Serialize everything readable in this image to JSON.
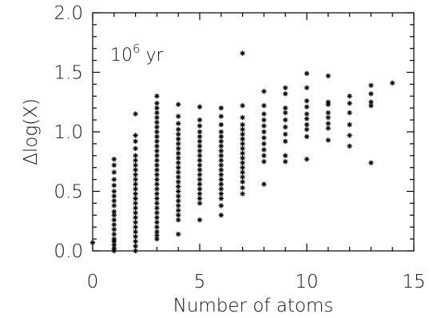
{
  "chart_data": {
    "type": "scatter",
    "title": "",
    "xlabel": "Number of atoms",
    "ylabel": "Δlog(X)",
    "xlim": [
      0,
      15
    ],
    "ylim": [
      0,
      2
    ],
    "xticks": [
      0,
      5,
      10,
      15
    ],
    "yticks": [
      0.0,
      0.5,
      1.0,
      1.5,
      2.0
    ],
    "xtick_labels": [
      "0",
      "5",
      "10",
      "15"
    ],
    "ytick_labels": [
      "0.0",
      "0.5",
      "1.0",
      "1.5",
      "2.0"
    ],
    "annotation": {
      "base": "10",
      "exponent": "6",
      "unit": " yr"
    },
    "marker": "asterisk",
    "marker_color": "#000000",
    "grid": false,
    "points": [
      [
        0,
        0.07
      ],
      [
        1,
        0.0
      ],
      [
        1,
        0.02
      ],
      [
        1,
        0.05
      ],
      [
        1,
        0.08
      ],
      [
        1,
        0.1
      ],
      [
        1,
        0.14
      ],
      [
        1,
        0.18
      ],
      [
        1,
        0.22
      ],
      [
        1,
        0.26
      ],
      [
        1,
        0.3
      ],
      [
        1,
        0.33
      ],
      [
        1,
        0.38
      ],
      [
        1,
        0.42
      ],
      [
        1,
        0.46
      ],
      [
        1,
        0.5
      ],
      [
        1,
        0.55
      ],
      [
        1,
        0.6
      ],
      [
        1,
        0.66
      ],
      [
        1,
        0.72
      ],
      [
        1,
        0.77
      ],
      [
        2,
        0.0
      ],
      [
        2,
        0.04
      ],
      [
        2,
        0.08
      ],
      [
        2,
        0.12
      ],
      [
        2,
        0.16
      ],
      [
        2,
        0.2
      ],
      [
        2,
        0.24
      ],
      [
        2,
        0.28
      ],
      [
        2,
        0.32
      ],
      [
        2,
        0.36
      ],
      [
        2,
        0.4
      ],
      [
        2,
        0.44
      ],
      [
        2,
        0.48
      ],
      [
        2,
        0.52
      ],
      [
        2,
        0.56
      ],
      [
        2,
        0.6
      ],
      [
        2,
        0.64
      ],
      [
        2,
        0.68
      ],
      [
        2,
        0.72
      ],
      [
        2,
        0.76
      ],
      [
        2,
        0.8
      ],
      [
        2,
        0.86
      ],
      [
        2,
        0.92
      ],
      [
        2,
        0.97
      ],
      [
        2,
        1.15
      ],
      [
        3,
        0.1
      ],
      [
        3,
        0.13
      ],
      [
        3,
        0.16
      ],
      [
        3,
        0.2
      ],
      [
        3,
        0.24
      ],
      [
        3,
        0.28
      ],
      [
        3,
        0.32
      ],
      [
        3,
        0.36
      ],
      [
        3,
        0.4
      ],
      [
        3,
        0.44
      ],
      [
        3,
        0.48
      ],
      [
        3,
        0.52
      ],
      [
        3,
        0.56
      ],
      [
        3,
        0.6
      ],
      [
        3,
        0.64
      ],
      [
        3,
        0.68
      ],
      [
        3,
        0.72
      ],
      [
        3,
        0.76
      ],
      [
        3,
        0.8
      ],
      [
        3,
        0.84
      ],
      [
        3,
        0.88
      ],
      [
        3,
        0.92
      ],
      [
        3,
        0.96
      ],
      [
        3,
        1.0
      ],
      [
        3,
        1.04
      ],
      [
        3,
        1.08
      ],
      [
        3,
        1.12
      ],
      [
        3,
        1.16
      ],
      [
        3,
        1.2
      ],
      [
        3,
        1.24
      ],
      [
        3,
        1.3
      ],
      [
        4,
        0.14
      ],
      [
        4,
        0.26
      ],
      [
        4,
        0.3
      ],
      [
        4,
        0.34
      ],
      [
        4,
        0.38
      ],
      [
        4,
        0.42
      ],
      [
        4,
        0.46
      ],
      [
        4,
        0.5
      ],
      [
        4,
        0.54
      ],
      [
        4,
        0.58
      ],
      [
        4,
        0.62
      ],
      [
        4,
        0.66
      ],
      [
        4,
        0.7
      ],
      [
        4,
        0.74
      ],
      [
        4,
        0.78
      ],
      [
        4,
        0.82
      ],
      [
        4,
        0.86
      ],
      [
        4,
        0.9
      ],
      [
        4,
        0.94
      ],
      [
        4,
        0.98
      ],
      [
        4,
        1.02
      ],
      [
        4,
        1.07
      ],
      [
        4,
        1.13
      ],
      [
        4,
        1.23
      ],
      [
        5,
        0.26
      ],
      [
        5,
        0.4
      ],
      [
        5,
        0.44
      ],
      [
        5,
        0.48
      ],
      [
        5,
        0.52
      ],
      [
        5,
        0.56
      ],
      [
        5,
        0.6
      ],
      [
        5,
        0.64
      ],
      [
        5,
        0.68
      ],
      [
        5,
        0.72
      ],
      [
        5,
        0.76
      ],
      [
        5,
        0.8
      ],
      [
        5,
        0.84
      ],
      [
        5,
        0.88
      ],
      [
        5,
        0.92
      ],
      [
        5,
        0.96
      ],
      [
        5,
        1.0
      ],
      [
        5,
        1.05
      ],
      [
        5,
        1.1
      ],
      [
        5,
        1.21
      ],
      [
        6,
        0.3
      ],
      [
        6,
        0.38
      ],
      [
        6,
        0.44
      ],
      [
        6,
        0.48
      ],
      [
        6,
        0.52
      ],
      [
        6,
        0.56
      ],
      [
        6,
        0.6
      ],
      [
        6,
        0.64
      ],
      [
        6,
        0.68
      ],
      [
        6,
        0.72
      ],
      [
        6,
        0.76
      ],
      [
        6,
        0.8
      ],
      [
        6,
        0.84
      ],
      [
        6,
        0.88
      ],
      [
        6,
        0.92
      ],
      [
        6,
        0.96
      ],
      [
        6,
        1.0
      ],
      [
        6,
        1.06
      ],
      [
        6,
        1.13
      ],
      [
        6,
        1.2
      ],
      [
        7,
        0.48
      ],
      [
        7,
        0.53
      ],
      [
        7,
        0.58
      ],
      [
        7,
        0.62
      ],
      [
        7,
        0.66
      ],
      [
        7,
        0.7
      ],
      [
        7,
        0.74
      ],
      [
        7,
        0.78
      ],
      [
        7,
        0.82
      ],
      [
        7,
        0.86
      ],
      [
        7,
        0.9
      ],
      [
        7,
        0.94
      ],
      [
        7,
        0.98
      ],
      [
        7,
        1.02
      ],
      [
        7,
        1.06
      ],
      [
        7,
        1.12
      ],
      [
        7,
        1.22
      ],
      [
        7,
        1.66
      ],
      [
        8,
        0.56
      ],
      [
        8,
        0.75
      ],
      [
        8,
        0.8
      ],
      [
        8,
        0.85
      ],
      [
        8,
        0.9
      ],
      [
        8,
        0.95
      ],
      [
        8,
        1.0
      ],
      [
        8,
        1.05
      ],
      [
        8,
        1.1
      ],
      [
        8,
        1.15
      ],
      [
        8,
        1.22
      ],
      [
        8,
        1.34
      ],
      [
        9,
        0.75
      ],
      [
        9,
        0.8
      ],
      [
        9,
        0.92
      ],
      [
        9,
        0.98
      ],
      [
        9,
        1.04
      ],
      [
        9,
        1.1
      ],
      [
        9,
        1.16
      ],
      [
        9,
        1.2
      ],
      [
        9,
        1.32
      ],
      [
        9,
        1.37
      ],
      [
        10,
        0.77
      ],
      [
        10,
        0.96
      ],
      [
        10,
        1.02
      ],
      [
        10,
        1.06
      ],
      [
        10,
        1.11
      ],
      [
        10,
        1.15
      ],
      [
        10,
        1.21
      ],
      [
        10,
        1.26
      ],
      [
        10,
        1.37
      ],
      [
        10,
        1.49
      ],
      [
        11,
        0.93
      ],
      [
        11,
        1.03
      ],
      [
        11,
        1.07
      ],
      [
        11,
        1.12
      ],
      [
        11,
        1.16
      ],
      [
        11,
        1.23
      ],
      [
        11,
        1.25
      ],
      [
        11,
        1.47
      ],
      [
        12,
        0.88
      ],
      [
        12,
        0.97
      ],
      [
        12,
        1.06
      ],
      [
        12,
        1.16
      ],
      [
        12,
        1.24
      ],
      [
        12,
        1.3
      ],
      [
        13,
        0.74
      ],
      [
        13,
        1.22
      ],
      [
        13,
        1.25
      ],
      [
        13,
        1.32
      ],
      [
        13,
        1.39
      ],
      [
        14,
        1.41
      ]
    ]
  }
}
